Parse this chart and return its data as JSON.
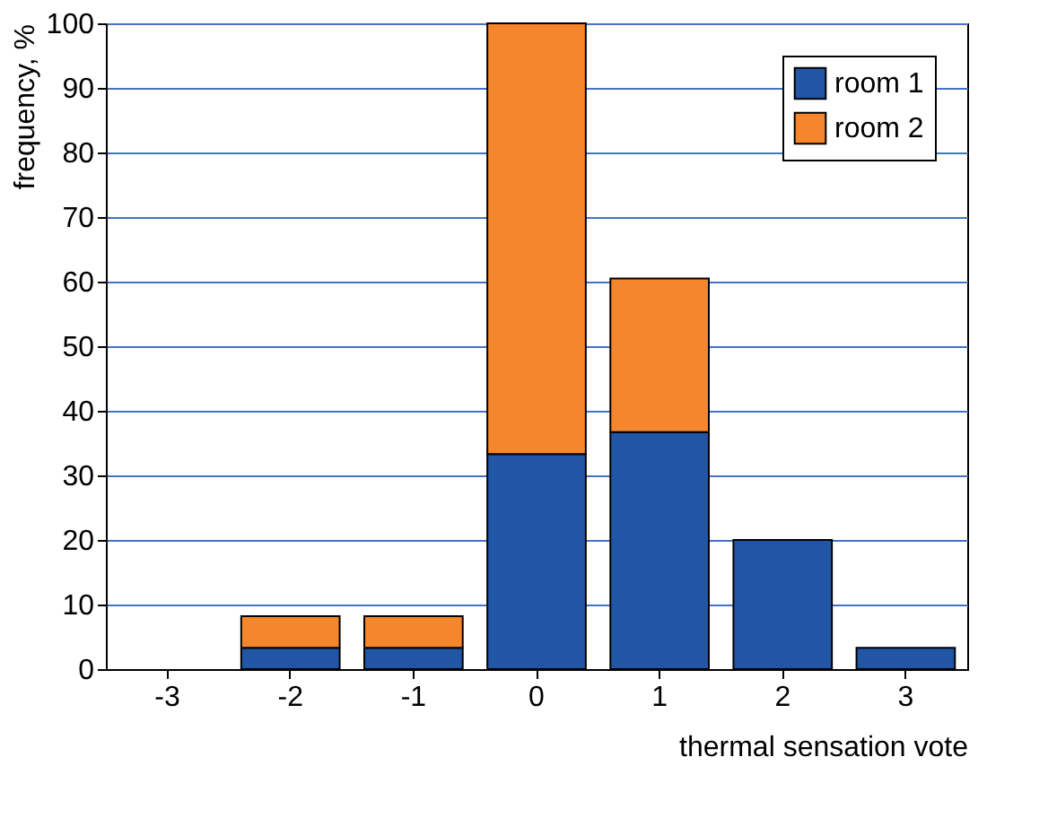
{
  "chart_data": {
    "type": "bar",
    "stacked": true,
    "xlabel": "thermal sensation vote",
    "ylabel": "frequency, %",
    "categories": [
      "-3",
      "-2",
      "-1",
      "0",
      "1",
      "2",
      "3"
    ],
    "series": [
      {
        "name": "room 1",
        "color": "#2156a5",
        "values": [
          0,
          3.3,
          3.3,
          33.3,
          36.7,
          20,
          3.3
        ]
      },
      {
        "name": "room 2",
        "color": "#f5862b",
        "values": [
          0,
          4.9,
          4.9,
          66.7,
          23.8,
          0,
          0
        ]
      }
    ],
    "ylim": [
      0,
      100
    ],
    "yticks": [
      0,
      10,
      20,
      30,
      40,
      50,
      60,
      70,
      80,
      90,
      100
    ],
    "grid": "y",
    "legend": "top right"
  }
}
